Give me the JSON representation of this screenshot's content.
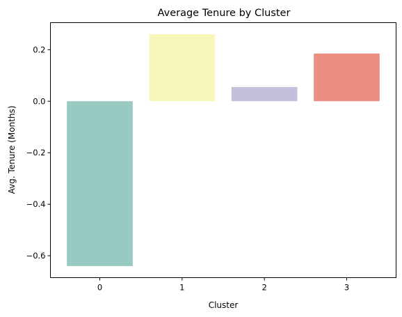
{
  "chart_data": {
    "type": "bar",
    "title": "Average Tenure by Cluster",
    "xlabel": "Cluster",
    "ylabel": "Avg. Tenure (Months)",
    "categories": [
      "0",
      "1",
      "2",
      "3"
    ],
    "values": [
      -0.64,
      0.26,
      0.055,
      0.185
    ],
    "colors": [
      "#99cac1",
      "#f7f7b9",
      "#c1bfd9",
      "#ec8f82"
    ],
    "ylim": [
      -0.685,
      0.305
    ],
    "yticks": [
      0.2,
      0.0,
      -0.2,
      -0.4,
      -0.6
    ],
    "ytick_labels": [
      "0.2",
      "0.0",
      "−0.2",
      "−0.4",
      "−0.6"
    ],
    "grid": false,
    "legend": "none"
  }
}
